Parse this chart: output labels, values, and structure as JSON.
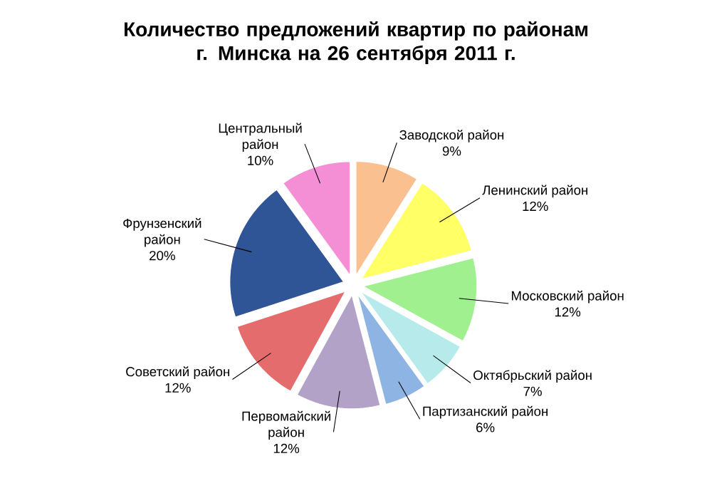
{
  "chart_data": {
    "type": "pie",
    "title": "Количество предложений квартир по районам\nг. Минска на 26 сентября 2011 г.",
    "categories": [
      "Заводской район",
      "Ленинский район",
      "Московский район",
      "Октябрьский район",
      "Партизанский район",
      "Первомайский район",
      "Советский район",
      "Фрунзенский район",
      "Центральный район"
    ],
    "values": [
      9,
      12,
      12,
      7,
      6,
      12,
      12,
      20,
      10
    ],
    "value_labels": [
      "9%",
      "12%",
      "12%",
      "7%",
      "6%",
      "12%",
      "12%",
      "20%",
      "10%"
    ],
    "colors": [
      "#fac090",
      "#ffff66",
      "#a0f090",
      "#b7ebeb",
      "#8db4e2",
      "#b3a2c7",
      "#e46c6c",
      "#2f5597",
      "#f58fd5"
    ]
  }
}
